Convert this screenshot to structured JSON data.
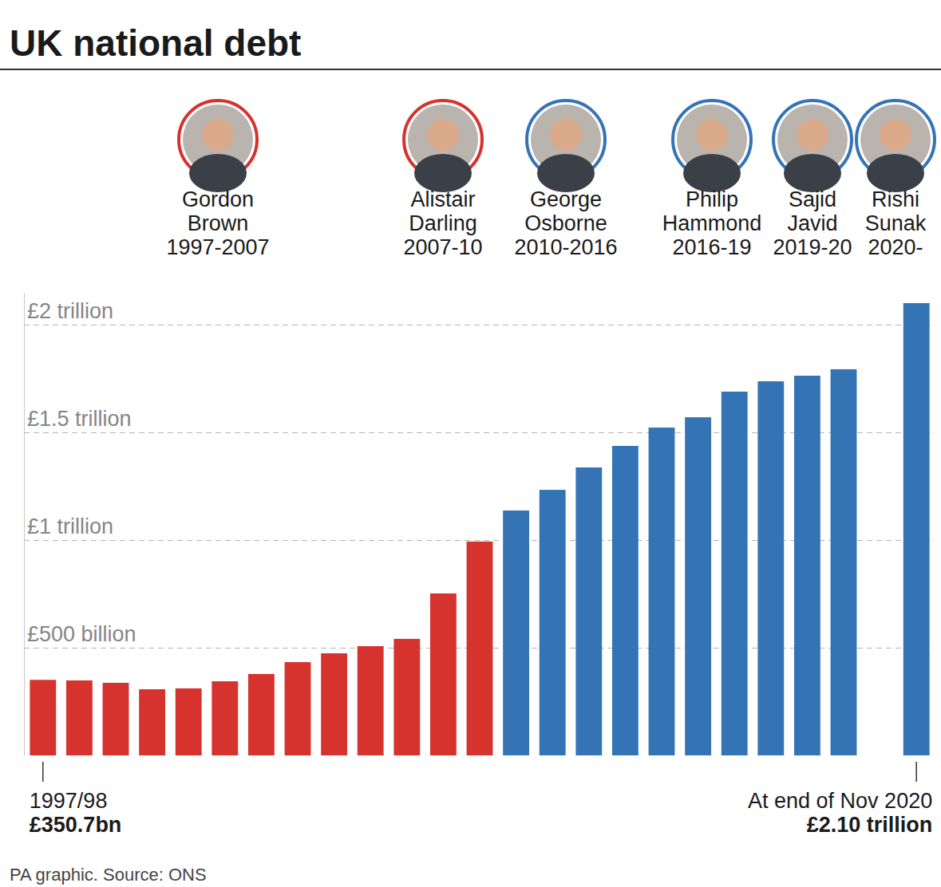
{
  "chart_data": {
    "type": "bar",
    "title": "UK national debt",
    "source": "PA graphic. Source: ONS",
    "chancellors": [
      {
        "name": "Gordon Brown",
        "years": "1997-2007",
        "color": "#d6322e"
      },
      {
        "name": "Alistair Darling",
        "years": "2007-10",
        "color": "#d6322e"
      },
      {
        "name": "George Osborne",
        "years": "2010-2016",
        "color": "#3474b5"
      },
      {
        "name": "Philip Hammond",
        "years": "2016-19",
        "color": "#3474b5"
      },
      {
        "name": "Sajid Javid",
        "years": "2019-20",
        "color": "#3474b5"
      },
      {
        "name": "Rishi Sunak",
        "years": "2020-",
        "color": "#3474b5"
      }
    ],
    "categories": [
      "1997/98",
      null,
      null,
      null,
      null,
      null,
      null,
      null,
      null,
      null,
      null,
      null,
      null,
      null,
      null,
      null,
      null,
      null,
      null,
      null,
      null,
      null,
      null,
      null,
      "At end of Nov 2020"
    ],
    "values": [
      350.7,
      348,
      337,
      307,
      311,
      344,
      378,
      433,
      474,
      507,
      541,
      752,
      993,
      1137,
      1233,
      1337,
      1437,
      1522,
      1570,
      1689,
      1737,
      1763,
      1793,
      null,
      2100
    ],
    "value_labels": [
      "£350.7bn",
      null,
      null,
      null,
      null,
      null,
      null,
      null,
      null,
      null,
      null,
      null,
      null,
      null,
      null,
      null,
      null,
      null,
      null,
      null,
      null,
      null,
      null,
      null,
      "£2.10 trillion"
    ],
    "colors": [
      "#d6322e",
      "#d6322e",
      "#d6322e",
      "#d6322e",
      "#d6322e",
      "#d6322e",
      "#d6322e",
      "#d6322e",
      "#d6322e",
      "#d6322e",
      "#d6322e",
      "#d6322e",
      "#d6322e",
      "#3474b5",
      "#3474b5",
      "#3474b5",
      "#3474b5",
      "#3474b5",
      "#3474b5",
      "#3474b5",
      "#3474b5",
      "#3474b5",
      "#3474b5",
      null,
      "#3474b5"
    ],
    "ylim": [
      0,
      2150
    ],
    "yticks": [
      {
        "value": 500,
        "label": "£500 billion"
      },
      {
        "value": 1000,
        "label": "£1 trillion"
      },
      {
        "value": 1500,
        "label": "£1.5 trillion"
      },
      {
        "value": 2000,
        "label": "£2 trillion"
      }
    ],
    "grid": true
  }
}
